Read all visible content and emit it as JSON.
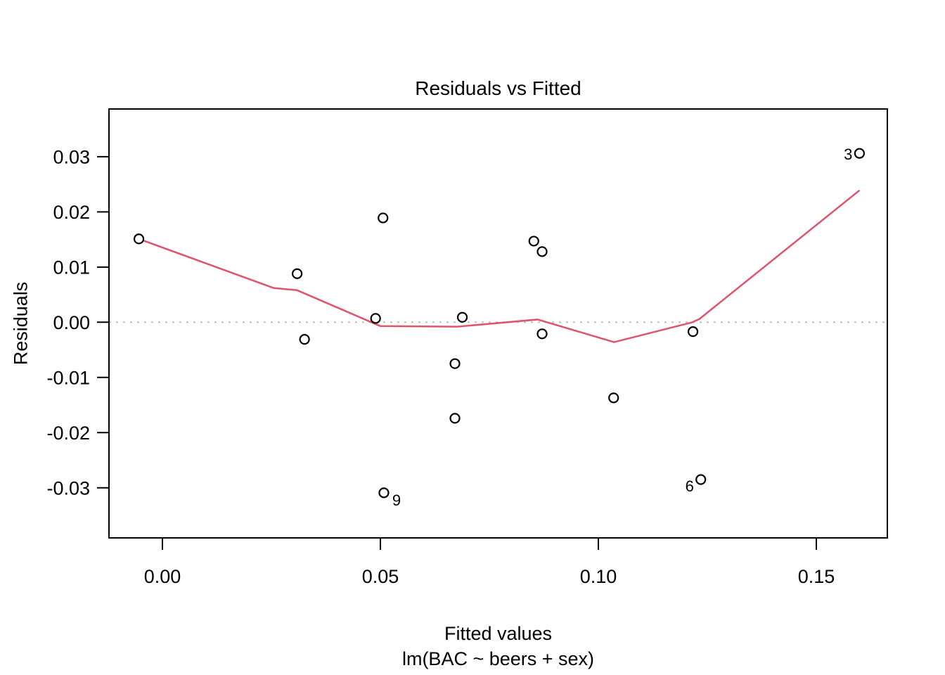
{
  "chart_data": {
    "type": "scatter",
    "title": "Residuals vs Fitted",
    "xlabel": "Fitted values",
    "xsublabel": "lm(BAC ~ beers + sex)",
    "ylabel": "Residuals",
    "xlim": [
      -0.01226,
      0.16629
    ],
    "ylim": [
      -0.03907,
      0.03864
    ],
    "grid": false,
    "legend": "none",
    "x_ticks": {
      "values": [
        0.0,
        0.05,
        0.1,
        0.15
      ],
      "labels": [
        "0.00",
        "0.05",
        "0.10",
        "0.15"
      ]
    },
    "y_ticks": {
      "values": [
        0.03,
        0.02,
        0.01,
        0.0,
        -0.01,
        -0.02,
        -0.03
      ],
      "labels": [
        "0.03",
        "0.02",
        "0.01",
        "0.00",
        "-0.01",
        "-0.02",
        "-0.03"
      ]
    },
    "reference_line": {
      "y": 0,
      "style": "dotted"
    },
    "points": [
      {
        "x": -0.0054,
        "y": 0.0151
      },
      {
        "x": 0.0309,
        "y": 0.0088
      },
      {
        "x": 0.0326,
        "y": -0.0031
      },
      {
        "x": 0.0489,
        "y": 0.0007
      },
      {
        "x": 0.0506,
        "y": 0.0189
      },
      {
        "x": 0.0508,
        "y": -0.0309,
        "label": "9",
        "label_pos": "lower-right"
      },
      {
        "x": 0.0671,
        "y": -0.0075
      },
      {
        "x": 0.0671,
        "y": -0.0174
      },
      {
        "x": 0.0688,
        "y": 0.0009
      },
      {
        "x": 0.0852,
        "y": 0.0147
      },
      {
        "x": 0.0871,
        "y": 0.0128
      },
      {
        "x": 0.0871,
        "y": -0.0021
      },
      {
        "x": 0.1035,
        "y": -0.0137
      },
      {
        "x": 0.1217,
        "y": -0.0017
      },
      {
        "x": 0.1235,
        "y": -0.0285,
        "label": "6",
        "label_pos": "lower-left"
      },
      {
        "x": 0.1599,
        "y": 0.0306,
        "label": "3",
        "label_pos": "left"
      }
    ],
    "smoother": {
      "name": "loess-smoother",
      "points": [
        [
          -0.0054,
          0.0151
        ],
        [
          0.0255,
          0.0062
        ],
        [
          0.0309,
          0.0058
        ],
        [
          0.05,
          -0.0007
        ],
        [
          0.0676,
          -0.0008
        ],
        [
          0.0861,
          0.0005
        ],
        [
          0.1036,
          -0.0036
        ],
        [
          0.1216,
          0.0
        ],
        [
          0.1232,
          0.0006
        ],
        [
          0.1599,
          0.0239
        ]
      ]
    },
    "colors": {
      "background": "#FFFFFF",
      "text": "#000000",
      "axis": "#000000",
      "point_stroke": "#000000",
      "point_fill": "#FFFFFF",
      "smoother": "#DF536B",
      "zero_line": "#BEBEBE"
    }
  }
}
